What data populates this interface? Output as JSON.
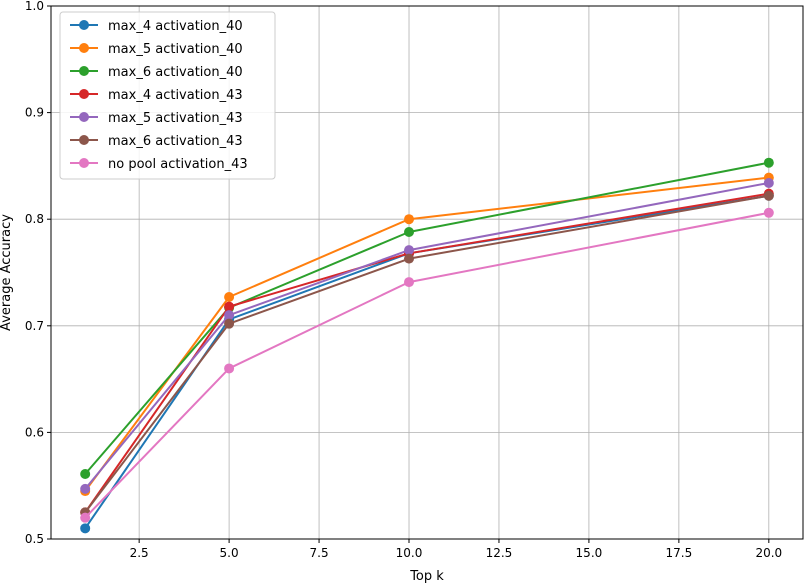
{
  "chart_data": {
    "type": "line",
    "title": "",
    "xlabel": "Top k",
    "ylabel": "Average Accuracy",
    "xlim": [
      0.05,
      20.95
    ],
    "ylim": [
      0.5,
      1.0
    ],
    "grid": true,
    "legend_position": "top-left",
    "x": [
      1,
      5,
      10,
      20
    ],
    "x_ticks": [
      2.5,
      5.0,
      7.5,
      10.0,
      12.5,
      15.0,
      17.5,
      20.0
    ],
    "x_tick_labels": [
      "2.5",
      "5.0",
      "7.5",
      "10.0",
      "12.5",
      "15.0",
      "17.5",
      "20.0"
    ],
    "y_ticks": [
      0.5,
      0.6,
      0.7,
      0.8,
      0.9,
      1.0
    ],
    "y_tick_labels": [
      "0.5",
      "0.6",
      "0.7",
      "0.8",
      "0.9",
      "1.0"
    ],
    "series": [
      {
        "name": "max_4 activation_40",
        "color": "#1f77b4",
        "values": [
          0.51,
          0.706,
          0.768,
          0.822
        ]
      },
      {
        "name": "max_5 activation_40",
        "color": "#ff7f0e",
        "values": [
          0.545,
          0.727,
          0.8,
          0.839
        ]
      },
      {
        "name": "max_6 activation_40",
        "color": "#2ca02c",
        "values": [
          0.561,
          0.717,
          0.788,
          0.853
        ]
      },
      {
        "name": "max_4 activation_43",
        "color": "#d62728",
        "values": [
          0.525,
          0.718,
          0.768,
          0.824
        ]
      },
      {
        "name": "max_5 activation_43",
        "color": "#9467bd",
        "values": [
          0.547,
          0.71,
          0.771,
          0.834
        ]
      },
      {
        "name": "max_6 activation_43",
        "color": "#8c564b",
        "values": [
          0.525,
          0.702,
          0.763,
          0.822
        ]
      },
      {
        "name": "no pool activation_43",
        "color": "#e377c2",
        "values": [
          0.52,
          0.66,
          0.741,
          0.806
        ]
      }
    ]
  }
}
